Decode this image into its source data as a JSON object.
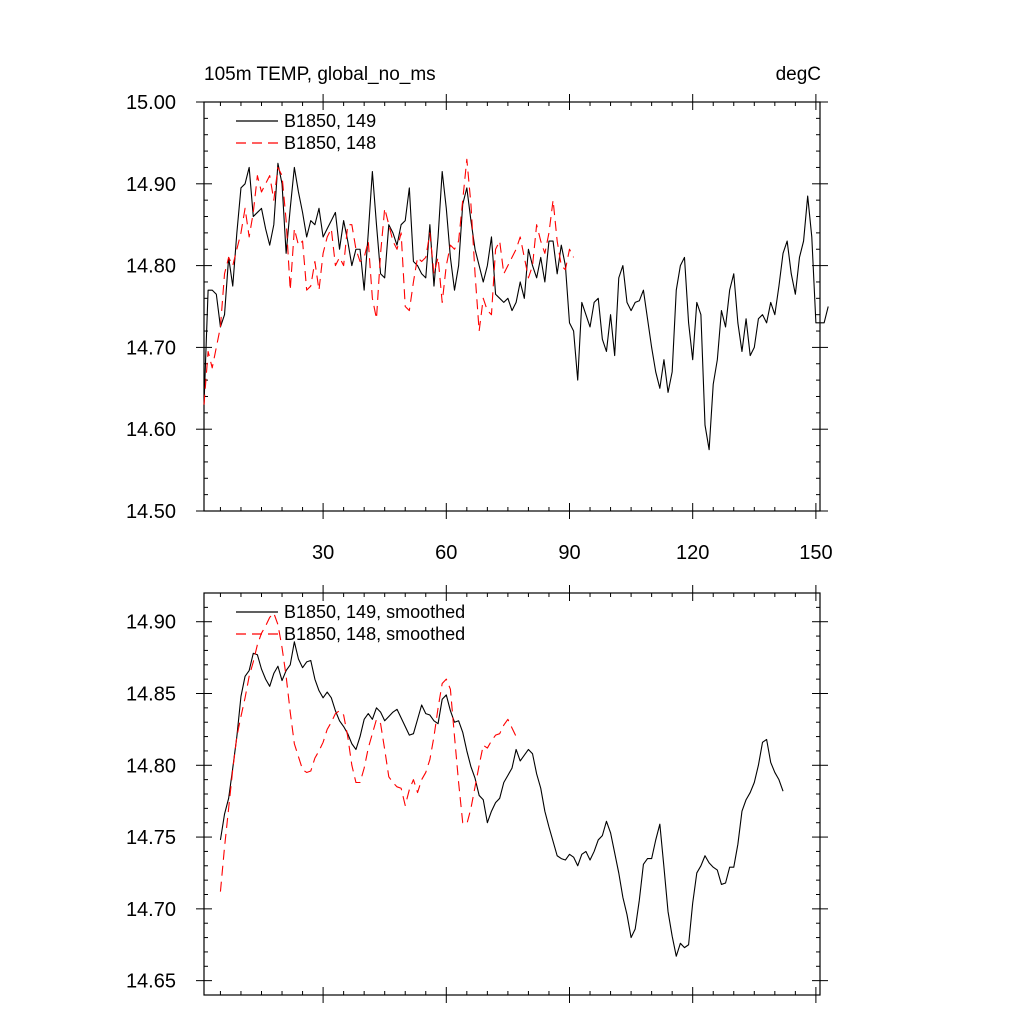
{
  "chart_data": [
    {
      "type": "line",
      "title_left": "105m TEMP, global_no_ms",
      "title_right": "degC",
      "xlim": [
        1,
        151
      ],
      "ylim": [
        14.5,
        15.0
      ],
      "xticks": [
        30,
        60,
        90,
        120,
        150
      ],
      "xtick_labels": [
        "30",
        "60",
        "90",
        "120",
        "150"
      ],
      "yticks": [
        14.5,
        14.6,
        14.7,
        14.8,
        14.9,
        15.0
      ],
      "ytick_labels": [
        "14.50",
        "14.60",
        "14.70",
        "14.80",
        "14.90",
        "15.00"
      ],
      "series": [
        {
          "name": "B1850, 149",
          "color": "#000000",
          "dash": "solid",
          "x_start": 1,
          "values": [
            14.63,
            14.77,
            14.77,
            14.765,
            14.725,
            14.74,
            14.81,
            14.775,
            14.84,
            14.895,
            14.9,
            14.92,
            14.86,
            14.865,
            14.87,
            14.845,
            14.825,
            14.85,
            14.925,
            14.9,
            14.815,
            14.87,
            14.92,
            14.89,
            14.865,
            14.835,
            14.855,
            14.85,
            14.87,
            14.835,
            14.845,
            14.855,
            14.865,
            14.82,
            14.855,
            14.83,
            14.8,
            14.82,
            14.82,
            14.77,
            14.84,
            14.915,
            14.85,
            14.79,
            14.785,
            14.85,
            14.84,
            14.825,
            14.85,
            14.855,
            14.895,
            14.805,
            14.8,
            14.79,
            14.785,
            14.85,
            14.775,
            14.835,
            14.915,
            14.87,
            14.81,
            14.77,
            14.8,
            14.875,
            14.895,
            14.855,
            14.82,
            14.8,
            14.78,
            14.8,
            14.835,
            14.765,
            14.76,
            14.755,
            14.76,
            14.745,
            14.755,
            14.78,
            14.76,
            14.82,
            14.8,
            14.785,
            14.81,
            14.78,
            14.83,
            14.83,
            14.79,
            14.825,
            14.8,
            14.73,
            14.72,
            14.66,
            14.755,
            14.74,
            14.725,
            14.755,
            14.76,
            14.71,
            14.695,
            14.74,
            14.69,
            14.785,
            14.8,
            14.755,
            14.745,
            14.755,
            14.757,
            14.77,
            14.735,
            14.7,
            14.67,
            14.65,
            14.685,
            14.645,
            14.67,
            14.77,
            14.8,
            14.81,
            14.73,
            14.685,
            14.755,
            14.74,
            14.605,
            14.575,
            14.655,
            14.685,
            14.745,
            14.725,
            14.77,
            14.79,
            14.73,
            14.695,
            14.735,
            14.69,
            14.7,
            14.735,
            14.74,
            14.73,
            14.755,
            14.74,
            14.775,
            14.815,
            14.83,
            14.79,
            14.765,
            14.81,
            14.83,
            14.885,
            14.835,
            14.73,
            14.73,
            14.73,
            14.75
          ]
        },
        {
          "name": "B1850, 148",
          "color": "#ff0000",
          "dash": "dashed",
          "x_start": 1,
          "values": [
            14.63,
            14.695,
            14.675,
            14.7,
            14.725,
            14.79,
            14.81,
            14.8,
            14.82,
            14.84,
            14.87,
            14.835,
            14.865,
            14.91,
            14.89,
            14.9,
            14.91,
            14.88,
            14.92,
            14.91,
            14.855,
            14.77,
            14.845,
            14.825,
            14.83,
            14.77,
            14.775,
            14.805,
            14.77,
            14.815,
            14.835,
            14.845,
            14.8,
            14.81,
            14.8,
            14.85,
            14.85,
            14.82,
            14.805,
            14.81,
            14.83,
            14.76,
            14.735,
            14.815,
            14.87,
            14.85,
            14.83,
            14.82,
            14.84,
            14.75,
            14.745,
            14.78,
            14.81,
            14.805,
            14.81,
            14.84,
            14.79,
            14.81,
            14.755,
            14.8,
            14.825,
            14.82,
            14.83,
            14.88,
            14.93,
            14.875,
            14.79,
            14.72,
            14.76,
            14.745,
            14.74,
            14.82,
            14.83,
            14.79,
            14.8,
            14.81,
            14.82,
            14.835,
            14.81,
            14.785,
            14.8,
            14.85,
            14.83,
            14.815,
            14.84,
            14.88,
            14.83,
            14.8,
            14.795,
            14.82,
            14.81
          ]
        }
      ]
    },
    {
      "type": "line",
      "xlim": [
        1,
        151
      ],
      "ylim": [
        14.64,
        14.92
      ],
      "xticks": [
        30,
        60,
        90,
        120,
        150
      ],
      "yticks": [
        14.65,
        14.7,
        14.75,
        14.8,
        14.85,
        14.9
      ],
      "ytick_labels": [
        "14.65",
        "14.70",
        "14.75",
        "14.80",
        "14.85",
        "14.90"
      ],
      "series": [
        {
          "name": "B1850, 149, smoothed",
          "color": "#000000",
          "dash": "solid",
          "x_start": 5,
          "values": [
            14.748,
            14.766,
            14.777,
            14.798,
            14.82,
            14.848,
            14.862,
            14.866,
            14.878,
            14.877,
            14.867,
            14.86,
            14.855,
            14.864,
            14.869,
            14.859,
            14.866,
            14.87,
            14.886,
            14.874,
            14.868,
            14.872,
            14.873,
            14.86,
            14.852,
            14.847,
            14.851,
            14.847,
            14.838,
            14.831,
            14.827,
            14.822,
            14.815,
            14.811,
            14.82,
            14.832,
            14.836,
            14.832,
            14.84,
            14.837,
            14.831,
            14.834,
            14.837,
            14.839,
            14.833,
            14.827,
            14.821,
            14.822,
            14.832,
            14.842,
            14.836,
            14.835,
            14.831,
            14.829,
            14.846,
            14.849,
            14.838,
            14.83,
            14.831,
            14.823,
            14.81,
            14.799,
            14.791,
            14.779,
            14.776,
            14.76,
            14.768,
            14.774,
            14.777,
            14.788,
            14.793,
            14.798,
            14.811,
            14.803,
            14.807,
            14.811,
            14.808,
            14.794,
            14.784,
            14.768,
            14.757,
            14.747,
            14.737,
            14.735,
            14.734,
            14.738,
            14.736,
            14.73,
            14.738,
            14.74,
            14.734,
            14.74,
            14.748,
            14.751,
            14.761,
            14.753,
            14.739,
            14.725,
            14.708,
            14.696,
            14.68,
            14.686,
            14.706,
            14.731,
            14.735,
            14.735,
            14.748,
            14.759,
            14.729,
            14.698,
            14.681,
            14.667,
            14.676,
            14.673,
            14.675,
            14.704,
            14.725,
            14.73,
            14.737,
            14.732,
            14.729,
            14.727,
            14.717,
            14.718,
            14.729,
            14.729,
            14.745,
            14.768,
            14.776,
            14.781,
            14.788,
            14.8,
            14.816,
            14.818,
            14.802,
            14.795,
            14.79,
            14.782
          ]
        },
        {
          "name": "B1850, 148, smoothed",
          "color": "#ff0000",
          "dash": "dashed",
          "x_start": 5,
          "values": [
            14.712,
            14.743,
            14.77,
            14.797,
            14.82,
            14.834,
            14.847,
            14.862,
            14.872,
            14.884,
            14.892,
            14.897,
            14.903,
            14.906,
            14.898,
            14.882,
            14.862,
            14.837,
            14.815,
            14.806,
            14.797,
            14.795,
            14.796,
            14.805,
            14.81,
            14.816,
            14.825,
            14.83,
            14.836,
            14.838,
            14.835,
            14.82,
            14.8,
            14.788,
            14.788,
            14.798,
            14.812,
            14.822,
            14.832,
            14.829,
            14.811,
            14.792,
            14.788,
            14.785,
            14.784,
            14.772,
            14.783,
            14.79,
            14.781,
            14.79,
            14.795,
            14.804,
            14.82,
            14.84,
            14.857,
            14.86,
            14.853,
            14.82,
            14.788,
            14.76,
            14.759,
            14.77,
            14.785,
            14.8,
            14.814,
            14.812,
            14.817,
            14.821,
            14.822,
            14.828,
            14.832,
            14.826,
            14.82
          ]
        }
      ]
    }
  ]
}
